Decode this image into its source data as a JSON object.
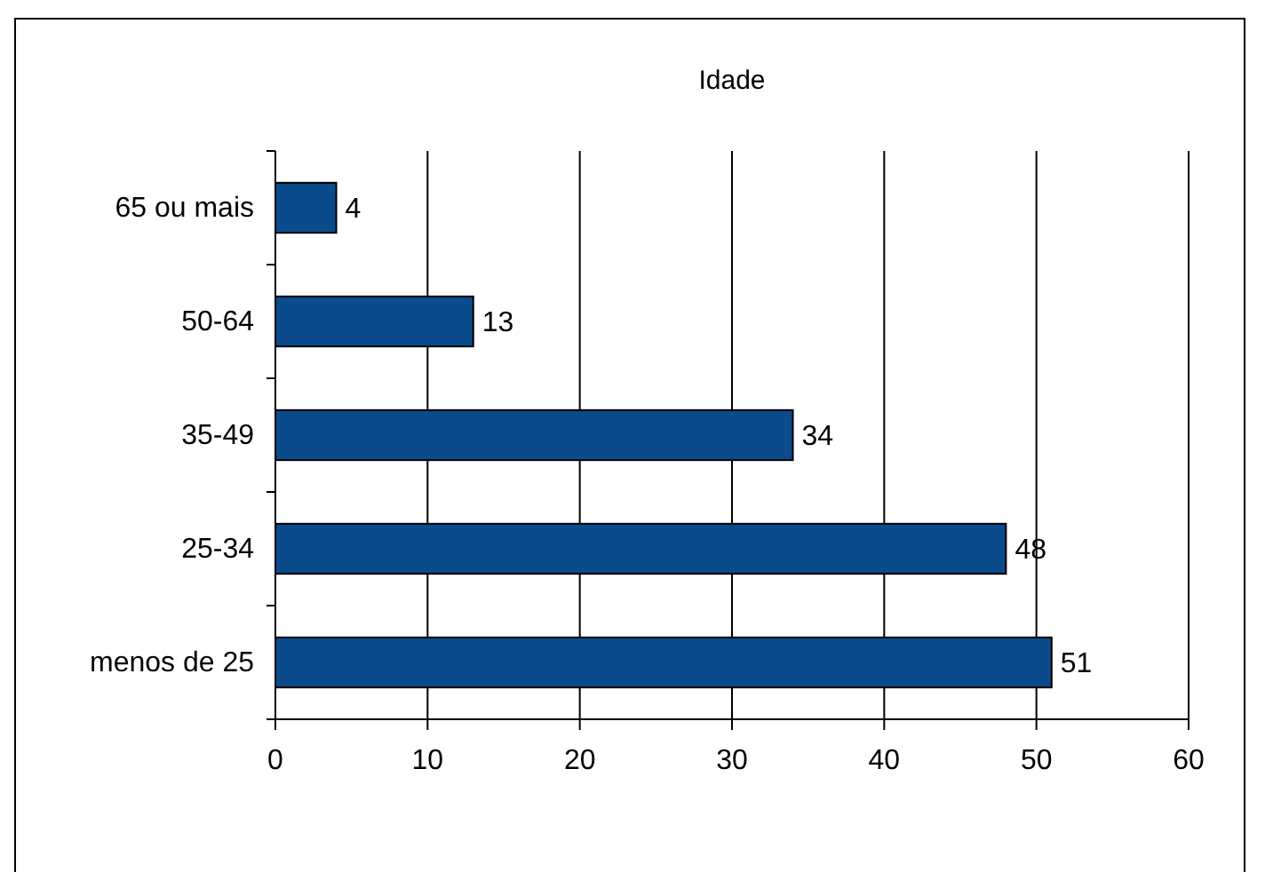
{
  "chart_data": {
    "type": "bar",
    "orientation": "horizontal",
    "title": "Idade",
    "categories": [
      "65 ou mais",
      "50-64",
      "35-49",
      "25-34",
      "menos de 25"
    ],
    "values": [
      4,
      13,
      34,
      48,
      51
    ],
    "color": "#0b4a8b",
    "xlim": [
      0,
      60
    ],
    "xticks": [
      0,
      10,
      20,
      30,
      40,
      50,
      60
    ],
    "grid": "x",
    "data_labels": true
  }
}
